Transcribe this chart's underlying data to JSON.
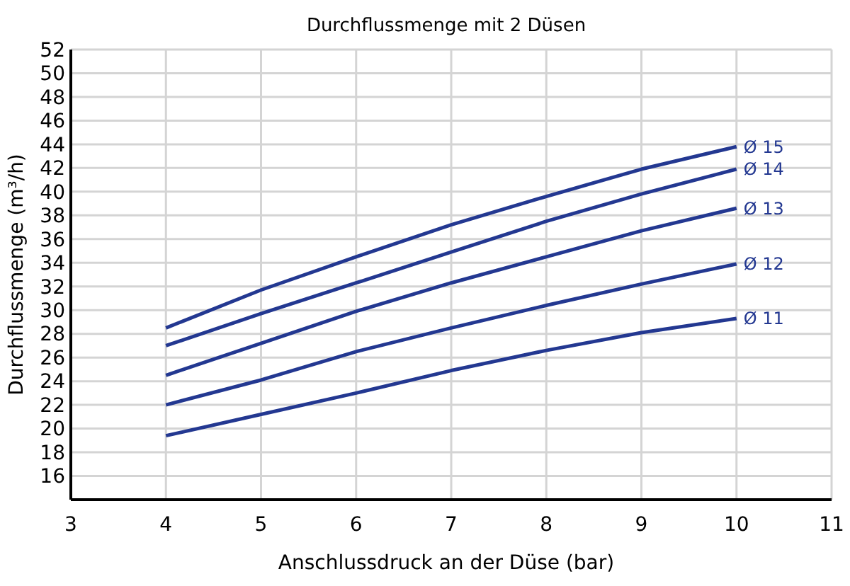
{
  "chart_data": {
    "type": "line",
    "title": "Durchflussmenge mit 2 Düsen",
    "xlabel": "Anschlussdruck an der Düse (bar)",
    "ylabel": "Durchflussmenge (m³/h)",
    "x": [
      4,
      5,
      6,
      7,
      8,
      9,
      10
    ],
    "series": [
      {
        "name": "Ø 15",
        "color": "#233891",
        "values": [
          28.5,
          31.7,
          34.5,
          37.2,
          39.6,
          41.9,
          43.8
        ]
      },
      {
        "name": "Ø 14",
        "color": "#233891",
        "values": [
          27.0,
          29.7,
          32.3,
          34.9,
          37.5,
          39.8,
          41.9
        ]
      },
      {
        "name": "Ø 13",
        "color": "#233891",
        "values": [
          24.5,
          27.2,
          29.9,
          32.3,
          34.5,
          36.7,
          38.6
        ]
      },
      {
        "name": "Ø 12",
        "color": "#233891",
        "values": [
          22.0,
          24.1,
          26.5,
          28.5,
          30.4,
          32.2,
          33.9
        ]
      },
      {
        "name": "Ø 11",
        "color": "#233891",
        "values": [
          19.4,
          21.2,
          23.0,
          24.9,
          26.6,
          28.1,
          29.3
        ]
      }
    ],
    "xlim": [
      3,
      11
    ],
    "xticks": [
      3,
      4,
      5,
      6,
      7,
      8,
      9,
      10,
      11
    ],
    "ylim": [
      14,
      52
    ],
    "yticks": [
      {
        "value": 14,
        "label": null
      },
      16,
      18,
      20,
      22,
      24,
      26,
      28,
      30,
      32,
      34,
      36,
      38,
      40,
      42,
      44,
      46,
      48,
      50,
      52
    ],
    "grid": true,
    "legend": false,
    "marker": "none",
    "line_style": "solid"
  }
}
